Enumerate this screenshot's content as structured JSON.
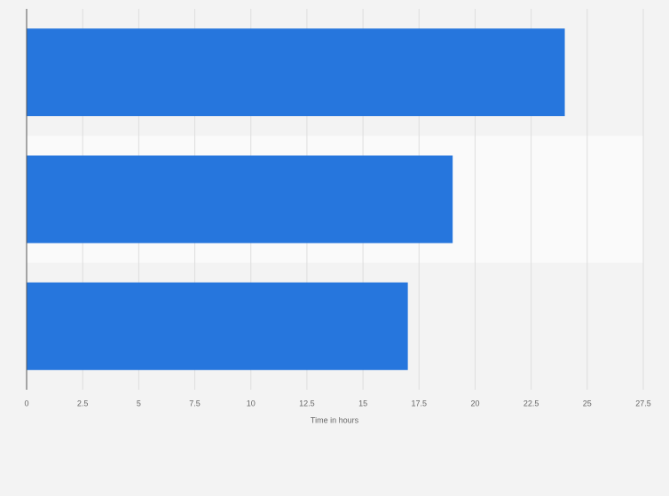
{
  "chart_data": {
    "type": "bar",
    "orientation": "horizontal",
    "categories": [
      null,
      null,
      null
    ],
    "values": [
      24,
      19,
      17
    ],
    "color": "#2676dd",
    "xlabel": "Time in hours",
    "xlim": [
      0,
      27.5
    ],
    "xticks": [
      0,
      2.5,
      5,
      7.5,
      10,
      12.5,
      15,
      17.5,
      20,
      22.5,
      25,
      27.5
    ],
    "grid": true
  }
}
